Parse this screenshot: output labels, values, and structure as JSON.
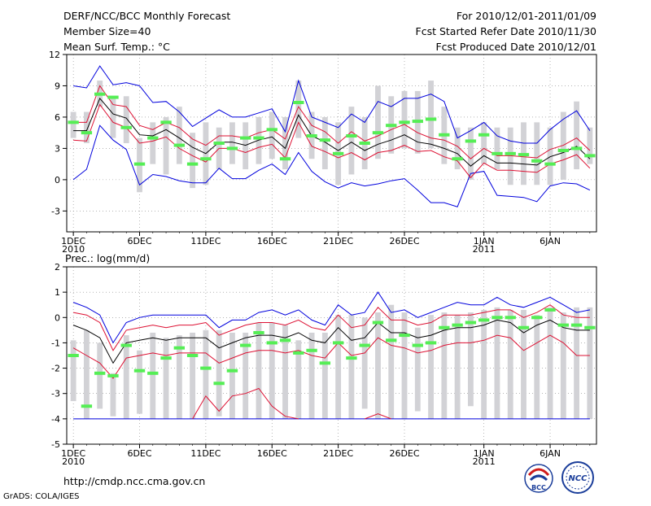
{
  "header": {
    "title": "DERF/NCC/BCC Monthly Forecast",
    "member_size": "Member Size=40",
    "variable": "Mean Surf. Temp.: °C",
    "period": "For 2010/12/01-2011/01/09",
    "fcst_started": "Fcst Started Refer Date 2010/11/30",
    "fcst_produced": "Fcst Produced Date 2010/12/01"
  },
  "footer": {
    "url": "http://cmdp.ncc.cma.gov.cn",
    "credit": "GrADS: COLA/IGES",
    "logo_bcc": "BCC",
    "logo_ncc": "NCC"
  },
  "colors": {
    "box": "#d2d2d6",
    "median": "#55ee55",
    "mean": "#000000",
    "sd": "#dd1133",
    "extreme": "#0000dd"
  },
  "chart_data": [
    {
      "type": "box",
      "title": "Mean Surf. Temp.: °C",
      "ylim": [
        -5,
        12
      ],
      "yticks": [
        -3,
        0,
        3,
        6,
        9,
        12
      ],
      "xlim": [
        0.5,
        40.5
      ],
      "xticks": [
        {
          "day": 1,
          "label": "1DEC",
          "sub": "2010"
        },
        {
          "day": 6,
          "label": "6DEC"
        },
        {
          "day": 11,
          "label": "11DEC"
        },
        {
          "day": 16,
          "label": "16DEC"
        },
        {
          "day": 21,
          "label": "21DEC"
        },
        {
          "day": 26,
          "label": "26DEC"
        },
        {
          "day": 32,
          "label": "1JAN",
          "sub": "2011"
        },
        {
          "day": 37,
          "label": "6JAN"
        }
      ],
      "box_low": [
        4.0,
        3.5,
        7.0,
        4.0,
        3.5,
        -1.2,
        1.5,
        0.5,
        1.5,
        -0.8,
        -0.5,
        1.0,
        1.5,
        1.0,
        1.5,
        2.0,
        1.0,
        4.0,
        2.0,
        1.0,
        -0.5,
        0.5,
        1.0,
        2.0,
        2.5,
        3.0,
        2.5,
        3.0,
        1.5,
        1.0,
        0.0,
        1.5,
        1.0,
        -0.5,
        -0.5,
        -0.5,
        -0.5,
        0.0,
        1.0,
        1.5
      ],
      "box_high": [
        6.5,
        6.5,
        9.5,
        8.0,
        8.0,
        4.0,
        5.5,
        6.0,
        7.0,
        4.5,
        5.5,
        5.0,
        5.5,
        5.5,
        6.0,
        6.5,
        6.0,
        9.5,
        6.5,
        6.0,
        5.5,
        7.0,
        6.0,
        9.0,
        8.0,
        8.5,
        8.5,
        9.5,
        7.0,
        5.0,
        5.0,
        5.5,
        5.0,
        5.0,
        5.5,
        5.5,
        5.0,
        6.5,
        7.5,
        5.0
      ],
      "median": [
        5.5,
        4.5,
        8.2,
        7.9,
        5.0,
        1.5,
        4.0,
        5.5,
        3.3,
        1.5,
        2.0,
        3.5,
        3.0,
        4.0,
        4.0,
        4.8,
        2.0,
        7.4,
        4.2,
        3.8,
        2.5,
        4.2,
        3.5,
        4.5,
        5.2,
        5.5,
        5.6,
        5.8,
        4.3,
        2.0,
        3.7,
        4.3,
        2.5,
        2.5,
        2.4,
        1.8,
        1.5,
        2.8,
        3.0,
        2.3
      ],
      "mean": [
        4.7,
        4.7,
        7.8,
        6.3,
        5.9,
        4.3,
        4.2,
        4.8,
        4.0,
        3.1,
        2.5,
        3.6,
        3.6,
        3.3,
        3.8,
        4.1,
        3.0,
        6.2,
        4.2,
        3.6,
        2.8,
        3.6,
        2.8,
        3.4,
        3.8,
        4.3,
        3.6,
        3.4,
        3.0,
        2.5,
        1.3,
        2.3,
        1.6,
        1.6,
        1.5,
        1.4,
        2.2,
        2.6,
        3.2,
        2.0
      ],
      "sd_upper": [
        5.5,
        5.5,
        9.0,
        7.2,
        7.0,
        5.2,
        4.8,
        5.5,
        5.0,
        3.9,
        3.3,
        4.2,
        4.2,
        4.0,
        4.5,
        4.8,
        3.9,
        7.0,
        5.2,
        4.6,
        3.5,
        4.6,
        3.7,
        4.2,
        4.8,
        5.3,
        4.5,
        4.0,
        3.8,
        3.2,
        2.0,
        3.0,
        2.3,
        2.3,
        2.2,
        2.1,
        2.9,
        3.3,
        4.0,
        2.8
      ],
      "sd_lower": [
        3.8,
        3.7,
        7.2,
        5.5,
        5.0,
        3.5,
        3.7,
        4.1,
        3.0,
        2.3,
        1.7,
        3.0,
        3.0,
        2.6,
        3.1,
        3.4,
        2.1,
        5.5,
        3.2,
        2.7,
        2.1,
        2.6,
        1.9,
        2.6,
        2.8,
        3.3,
        2.7,
        2.8,
        2.2,
        1.8,
        0.2,
        1.6,
        0.9,
        0.9,
        0.8,
        0.7,
        1.5,
        1.9,
        2.4,
        1.1
      ],
      "max": [
        9.0,
        8.8,
        10.9,
        9.1,
        9.3,
        9.0,
        7.4,
        7.5,
        6.5,
        5.1,
        5.9,
        6.7,
        6.0,
        6.0,
        6.4,
        6.8,
        4.6,
        9.5,
        6.0,
        5.5,
        5.0,
        6.3,
        5.5,
        7.5,
        7.0,
        7.8,
        7.8,
        8.2,
        7.5,
        4.0,
        4.7,
        5.5,
        4.2,
        3.7,
        3.5,
        3.5,
        4.8,
        5.8,
        6.6,
        4.7
      ],
      "min": [
        0.0,
        1.0,
        5.2,
        3.8,
        2.9,
        -0.5,
        0.5,
        0.3,
        -0.1,
        -0.3,
        -0.3,
        1.1,
        0.1,
        0.1,
        0.9,
        1.5,
        0.5,
        2.6,
        0.8,
        -0.2,
        -0.8,
        -0.3,
        -0.6,
        -0.4,
        -0.1,
        0.1,
        -1.0,
        -2.2,
        -2.2,
        -2.6,
        0.6,
        0.8,
        -1.5,
        -1.6,
        -1.7,
        -2.1,
        -0.6,
        -0.3,
        -0.4,
        -1.0
      ]
    },
    {
      "type": "box",
      "title": "Prec.: log(mm/d)",
      "ylim": [
        -5,
        2
      ],
      "yticks": [
        -5,
        -4,
        -3,
        -2,
        -1,
        0,
        1,
        2
      ],
      "xlim": [
        0.5,
        40.5
      ],
      "xticks": [
        {
          "day": 1,
          "label": "1DEC",
          "sub": "2010"
        },
        {
          "day": 6,
          "label": "6DEC"
        },
        {
          "day": 11,
          "label": "11DEC"
        },
        {
          "day": 16,
          "label": "16DEC"
        },
        {
          "day": 21,
          "label": "21DEC"
        },
        {
          "day": 26,
          "label": "26DEC"
        },
        {
          "day": 32,
          "label": "1JAN",
          "sub": "2011"
        },
        {
          "day": 37,
          "label": "6JAN"
        }
      ],
      "box_low": [
        -3.3,
        -4.0,
        -3.6,
        -3.9,
        -4.0,
        -3.8,
        -4.0,
        -4.0,
        -4.0,
        -4.0,
        -4.0,
        -3.9,
        -4.0,
        -4.0,
        -4.0,
        -4.0,
        -4.0,
        -4.0,
        -4.0,
        -4.0,
        -4.0,
        -4.0,
        -3.6,
        -4.0,
        -4.0,
        -4.0,
        -3.7,
        -4.0,
        -4.0,
        -4.0,
        -3.5,
        -4.0,
        -4.0,
        -4.0,
        -4.0,
        -4.0,
        -4.0,
        -4.0,
        -4.0,
        -4.0
      ],
      "box_high": [
        -0.9,
        -0.5,
        -1.0,
        -2.2,
        -0.7,
        -1.3,
        -0.6,
        -0.8,
        -0.7,
        -0.6,
        -0.5,
        -0.5,
        -0.6,
        -0.6,
        -0.2,
        -0.2,
        -0.3,
        -0.9,
        -0.6,
        -0.6,
        0.1,
        0.1,
        0.0,
        0.2,
        0.5,
        0.2,
        -0.4,
        0.1,
        0.2,
        0.1,
        0.2,
        0.3,
        0.4,
        0.3,
        0.3,
        0.1,
        0.4,
        0.2,
        0.4,
        0.4
      ],
      "median": [
        -1.5,
        -3.5,
        -2.2,
        -2.3,
        -1.1,
        -2.1,
        -2.2,
        -1.6,
        -1.2,
        -1.5,
        -2.0,
        -2.6,
        -2.1,
        -1.1,
        -0.6,
        -1.0,
        -0.9,
        -1.4,
        -1.3,
        -1.8,
        -1.0,
        -1.6,
        -1.1,
        -0.2,
        -0.9,
        -0.7,
        -1.1,
        -1.0,
        -0.4,
        -0.3,
        -0.2,
        -0.1,
        0.0,
        0.0,
        -0.4,
        0.0,
        0.3,
        -0.3,
        -0.3,
        -0.4
      ],
      "mean": [
        -0.3,
        -0.5,
        -0.8,
        -1.8,
        -1.0,
        -0.9,
        -0.8,
        -0.9,
        -0.8,
        -0.8,
        -0.8,
        -1.2,
        -1.0,
        -0.8,
        -0.7,
        -0.7,
        -0.8,
        -0.6,
        -0.9,
        -1.0,
        -0.4,
        -0.9,
        -0.8,
        -0.2,
        -0.6,
        -0.6,
        -0.8,
        -0.7,
        -0.5,
        -0.4,
        -0.4,
        -0.3,
        -0.1,
        -0.2,
        -0.6,
        -0.3,
        -0.1,
        -0.4,
        -0.5,
        -0.5
      ],
      "sd_upper": [
        0.2,
        0.1,
        -0.2,
        -1.3,
        -0.5,
        -0.4,
        -0.3,
        -0.4,
        -0.3,
        -0.3,
        -0.2,
        -0.7,
        -0.5,
        -0.3,
        -0.2,
        -0.2,
        -0.3,
        -0.1,
        -0.4,
        -0.5,
        0.1,
        -0.4,
        -0.3,
        0.4,
        -0.1,
        -0.1,
        -0.3,
        -0.2,
        0.1,
        0.1,
        0.1,
        0.2,
        0.3,
        0.3,
        0.0,
        0.2,
        0.5,
        0.1,
        0.0,
        0.0
      ],
      "sd_lower": [
        -1.2,
        -1.5,
        -1.8,
        -2.4,
        -1.6,
        -1.5,
        -1.4,
        -1.5,
        -1.4,
        -1.4,
        -1.4,
        -1.8,
        -1.6,
        -1.4,
        -1.3,
        -1.3,
        -1.4,
        -1.3,
        -1.5,
        -1.6,
        -1.0,
        -1.5,
        -1.4,
        -0.8,
        -1.1,
        -1.2,
        -1.4,
        -1.3,
        -1.1,
        -1.0,
        -1.0,
        -0.9,
        -0.7,
        -0.8,
        -1.3,
        -1.0,
        -0.7,
        -1.0,
        -1.5,
        -1.5
      ],
      "max": [
        0.6,
        0.4,
        0.1,
        -1.0,
        -0.2,
        0.0,
        0.1,
        0.1,
        0.1,
        0.1,
        0.1,
        -0.4,
        -0.1,
        -0.1,
        0.2,
        0.3,
        0.1,
        0.3,
        -0.1,
        -0.3,
        0.5,
        0.1,
        0.2,
        1.0,
        0.2,
        0.3,
        0.0,
        0.2,
        0.4,
        0.6,
        0.5,
        0.5,
        0.8,
        0.5,
        0.4,
        0.6,
        0.8,
        0.5,
        0.2,
        0.3
      ],
      "min": [
        -4.0,
        -4.0,
        -4.0,
        -4.0,
        -4.0,
        -4.0,
        -4.0,
        -4.0,
        -4.0,
        -4.0,
        -4.0,
        -4.0,
        -4.0,
        -4.0,
        -4.0,
        -4.0,
        -4.0,
        -4.0,
        -4.0,
        -4.0,
        -4.0,
        -4.0,
        -4.0,
        -4.0,
        -4.0,
        -4.0,
        -4.0,
        -4.0,
        -4.0,
        -4.0,
        -4.0,
        -4.0,
        -4.0,
        -4.0,
        -4.0,
        -4.0,
        -4.0,
        -4.0,
        -4.0,
        -4.0
      ],
      "extra_red_segments": [
        {
          "days": [
            10,
            11,
            12,
            13,
            14,
            15,
            16,
            17,
            18
          ],
          "values": [
            -4.0,
            -3.1,
            -3.7,
            -3.1,
            -3.0,
            -2.8,
            -3.5,
            -3.9,
            -4.0
          ]
        },
        {
          "days": [
            23,
            24,
            25
          ],
          "values": [
            -4.0,
            -3.8,
            -4.0
          ]
        }
      ]
    }
  ]
}
